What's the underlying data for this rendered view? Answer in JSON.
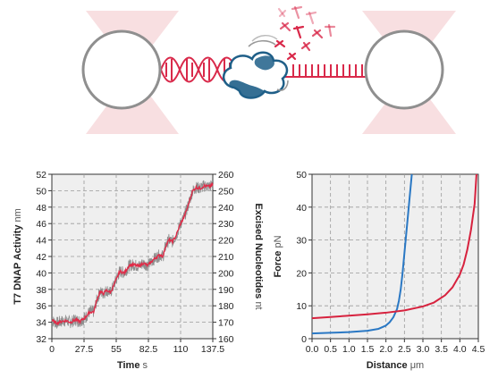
{
  "colors": {
    "dna_red": "#d9294a",
    "protein_blue": "#1f5f88",
    "bead_gray": "#8f8f8f",
    "trap_pink": "#f6d4d7",
    "trace_gray": "#8e8e8e",
    "trace_red": "#e22a47",
    "curve_blue": "#2a78c4",
    "curve_red": "#d7223e",
    "plot_bg": "#efefef"
  },
  "illustration": {
    "elements": [
      "optical-trap-left",
      "bead-left",
      "dsDNA-helix",
      "DNAP-enzyme",
      "ssDNA-strand",
      "free-nucleotides",
      "optical-trap-right",
      "bead-right"
    ]
  },
  "chart_data": [
    {
      "type": "line",
      "x": [
        0,
        4,
        8,
        12,
        16,
        20,
        24,
        28,
        32,
        36,
        38,
        41,
        44,
        47,
        50,
        53,
        56,
        58,
        62,
        66,
        70,
        74,
        78,
        82,
        86,
        90,
        93,
        95,
        97,
        100,
        103,
        106,
        110,
        113,
        116,
        120,
        123,
        127,
        130,
        134,
        137.5
      ],
      "series": [
        {
          "values": [
            34.2,
            33.9,
            34.1,
            34.2,
            34.0,
            34.3,
            34.1,
            34.5,
            35.2,
            35.3,
            36.5,
            37.7,
            37.5,
            37.9,
            37.6,
            38.5,
            39.5,
            40.2,
            40.0,
            40.9,
            41.0,
            40.8,
            41.2,
            40.9,
            41.5,
            42.0,
            42.2,
            42.0,
            43.2,
            44.0,
            43.8,
            44.5,
            46.0,
            46.8,
            48.0,
            49.9,
            50.4,
            50.3,
            50.6,
            50.5,
            50.7
          ]
        }
      ],
      "xlabel": "Time",
      "xunit": "s",
      "ylabel": "T7 DNAP Activity",
      "yunit": "nm",
      "y2label": "Excised Nucleotides",
      "y2unit": "nt",
      "xlim": [
        0,
        137.5
      ],
      "ylim": [
        32,
        52
      ],
      "y2lim": [
        160,
        260
      ],
      "xticks": [
        "0",
        "27.5",
        "55",
        "82.5",
        "110",
        "137.5"
      ],
      "yticks": [
        "32",
        "34",
        "36",
        "38",
        "40",
        "42",
        "44",
        "46",
        "48",
        "50",
        "52"
      ],
      "y2ticks": [
        "160",
        "170",
        "180",
        "190",
        "200",
        "210",
        "220",
        "230",
        "240",
        "250",
        "260"
      ],
      "grid": true
    },
    {
      "type": "line",
      "series": [
        {
          "x": [
            0.0,
            0.5,
            1.0,
            1.5,
            1.8,
            2.0,
            2.1,
            2.2,
            2.3,
            2.35,
            2.4,
            2.45,
            2.5,
            2.55,
            2.6,
            2.65,
            2.7
          ],
          "values": [
            1.6,
            1.8,
            2.0,
            2.4,
            3.0,
            4.0,
            5.0,
            6.5,
            9.0,
            11.5,
            15.0,
            20.0,
            26.0,
            32.0,
            38.0,
            44.0,
            50.0
          ]
        },
        {
          "x": [
            0.0,
            0.5,
            1.0,
            1.5,
            2.0,
            2.5,
            3.0,
            3.3,
            3.6,
            3.8,
            4.0,
            4.1,
            4.2,
            4.3,
            4.4,
            4.45
          ],
          "values": [
            6.2,
            6.6,
            7.0,
            7.4,
            7.9,
            8.6,
            9.8,
            11.0,
            13.2,
            15.6,
            19.5,
            22.5,
            27.0,
            33.0,
            41.0,
            50.0
          ]
        }
      ],
      "xlabel": "Distance",
      "xunit": "μm",
      "ylabel": "Force",
      "yunit": "pN",
      "xlim": [
        0,
        4.5
      ],
      "ylim": [
        0,
        50
      ],
      "xticks": [
        "0.0",
        "0.5",
        "1.0",
        "1.5",
        "2.0",
        "2.5",
        "3.0",
        "3.5",
        "4.0",
        "4.5"
      ],
      "yticks": [
        "0",
        "10",
        "20",
        "30",
        "40",
        "50"
      ],
      "grid": true
    }
  ]
}
